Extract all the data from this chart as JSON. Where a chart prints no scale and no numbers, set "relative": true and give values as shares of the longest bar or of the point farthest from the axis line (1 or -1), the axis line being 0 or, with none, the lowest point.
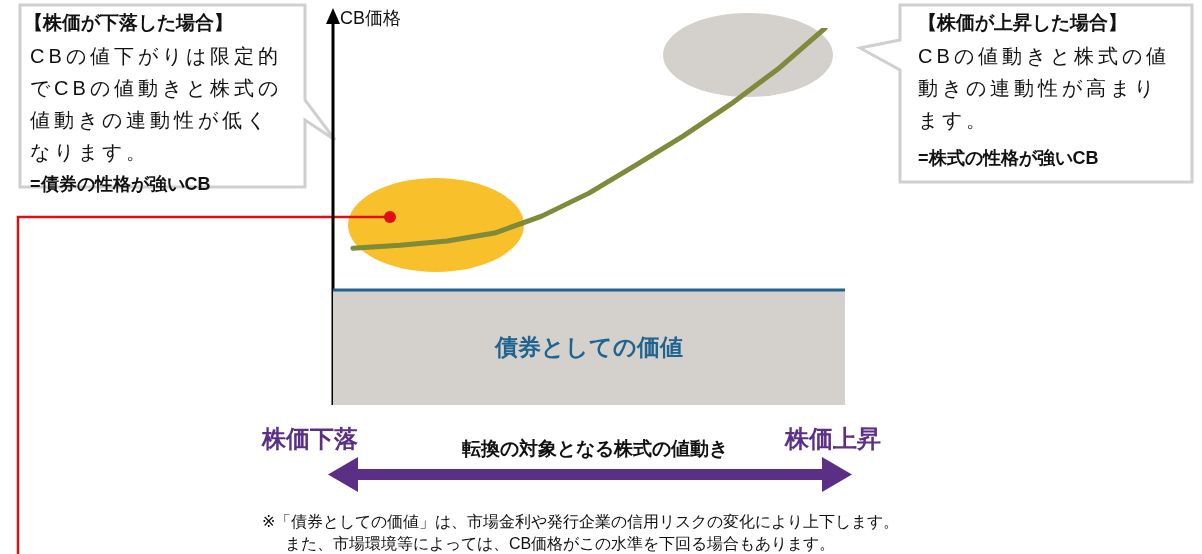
{
  "chart_data": {
    "type": "line",
    "relative": true,
    "ylabel": "CB価格",
    "xlabel": "転換の対象となる株式の値動き",
    "categories": [
      null,
      null,
      null,
      null,
      null,
      null,
      null,
      null,
      null,
      null,
      null
    ],
    "series": [
      {
        "color": "#7f8a3a",
        "values": [
          0.416,
          0.424,
          0.435,
          0.456,
          0.501,
          0.562,
          0.637,
          0.714,
          0.798,
          0.891,
          1
        ]
      }
    ],
    "bands": [
      {
        "axis": "y",
        "from": 0,
        "to": 0.305,
        "label": "債券としての価値",
        "color": "#d4d0cb"
      }
    ],
    "ref_lines": [
      {
        "axis": "y",
        "value": 0.305,
        "color": "#1f6390"
      }
    ],
    "annotations": [
      "【株価が下落した場合】",
      "CBの値下がりは限定的でCBの値動きと株式の値動きの連動性が低くなります。",
      "=債券の性格が強いCB",
      "【株価が上昇した場合】",
      "CBの値動きと株式の値動きの連動性が高まります。",
      "=株式の性格が強いCB",
      "株価下落",
      "株価上昇",
      "※「債券としての価値」は、市場金利や発行企業の信用リスクの変化により上下します。",
      "また、市場環境等によっては、CB価格がこの水準を下回る場合もあります。"
    ]
  }
}
